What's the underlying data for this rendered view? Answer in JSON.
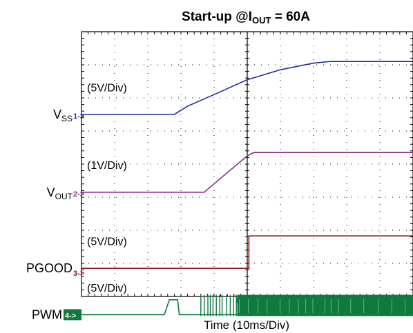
{
  "chart_data": {
    "type": "line",
    "title_prefix": "Start-up  @I",
    "title_sub": "OUT",
    "title_suffix": " = 60A",
    "xlabel": "Time  (10ms/Div)",
    "grid": true,
    "divisions": {
      "x": 10,
      "y": 8
    },
    "x_unit": "ms",
    "xlim": [
      0,
      100
    ],
    "channels": [
      {
        "name": "V",
        "name_sub": "SS",
        "marker": "1->",
        "scale": "(5V/Div)",
        "color": "#1f2f9a",
        "points": [
          [
            0,
            0
          ],
          [
            28,
            0
          ],
          [
            32,
            0.25
          ],
          [
            40,
            0.6
          ],
          [
            50,
            1.05
          ],
          [
            60,
            1.35
          ],
          [
            70,
            1.55
          ],
          [
            75,
            1.6
          ],
          [
            100,
            1.6
          ]
        ]
      },
      {
        "name": "V",
        "name_sub": "OUT",
        "marker": "2->",
        "scale": "(1V/Div)",
        "color": "#8a2a8a",
        "points": [
          [
            0,
            0
          ],
          [
            37,
            0
          ],
          [
            50,
            1.1
          ],
          [
            52,
            1.2
          ],
          [
            100,
            1.2
          ]
        ]
      },
      {
        "name": "PGOOD",
        "name_sub": "",
        "marker": "3->",
        "scale": "(5V/Div)",
        "color": "#8b1a1a",
        "points": [
          [
            0,
            0
          ],
          [
            50.5,
            0
          ],
          [
            50.5,
            0.98
          ],
          [
            100,
            0.98
          ]
        ]
      },
      {
        "name": "PWM",
        "name_sub": "",
        "marker": "4->",
        "scale": "(5V/Div)",
        "color": "#0e7a3e",
        "points": [
          [
            0,
            0
          ],
          [
            25,
            0
          ],
          [
            26.5,
            0.45
          ],
          [
            29,
            0.45
          ],
          [
            29.5,
            0
          ],
          [
            100,
            0
          ]
        ],
        "switching_start": 36,
        "switching_dense": 47
      }
    ]
  }
}
